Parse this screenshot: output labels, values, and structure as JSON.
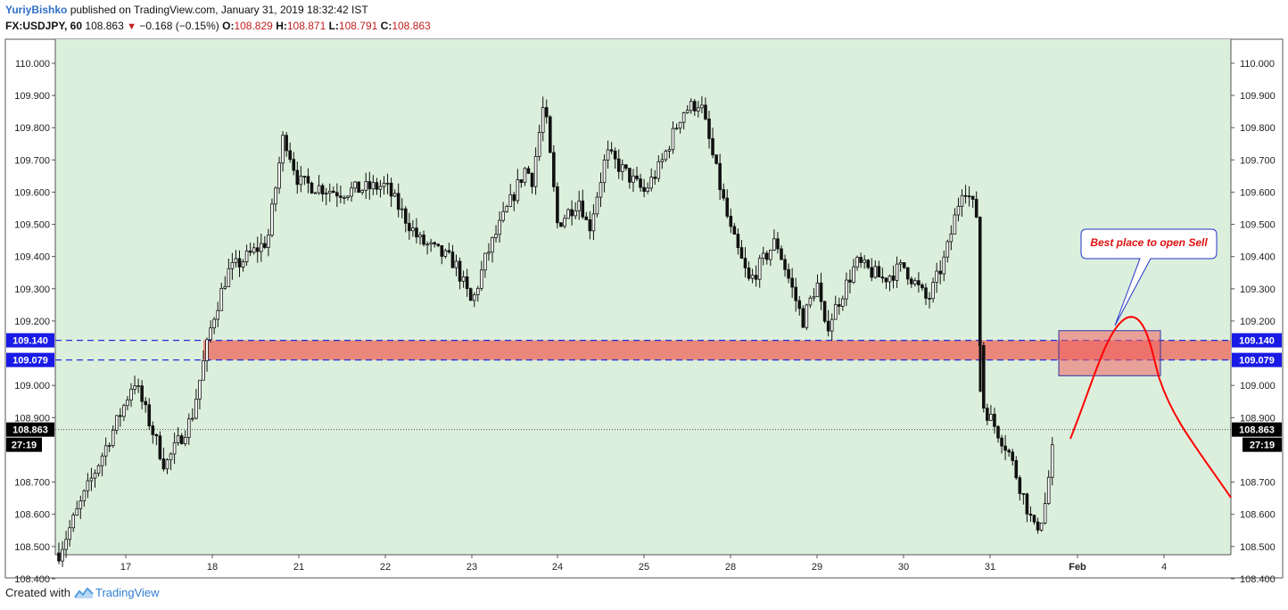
{
  "header": {
    "author": "YuriyBishko",
    "published": "published on TradingView.com, January 31, 2019 18:32:42 IST",
    "symbol": "FX:USDJPY, 60",
    "price": "108.863",
    "change": "−0.168 (−0.15%)",
    "o_label": "O:",
    "o_value": "108.829",
    "h_label": "H:",
    "h_value": "108.871",
    "l_label": "L:",
    "l_value": "108.791",
    "c_label": "C:",
    "c_value": "108.863"
  },
  "footer": {
    "created_with": "Created with",
    "brand": "TradingView"
  },
  "colors": {
    "plot_bg": "#dcefdc",
    "candle": "#111111",
    "zone_fill": "#e8877a",
    "line_blue": "#1f2fe0",
    "badge_blue": "#1a1ae6",
    "badge_black": "#000000",
    "sell_box": "#f06060",
    "projection": "#ff0000"
  },
  "chart_data": {
    "type": "candlestick",
    "x_tick_labels": [
      "17",
      "18",
      "21",
      "22",
      "23",
      "24",
      "25",
      "28",
      "29",
      "30",
      "31",
      "Feb",
      "4"
    ],
    "y_tick_labels": [
      "110.000",
      "109.900",
      "109.800",
      "109.700",
      "109.600",
      "109.500",
      "109.400",
      "109.300",
      "109.200",
      "109.000",
      "108.900",
      "108.700",
      "108.600",
      "108.500",
      "108.400"
    ],
    "ylim": [
      108.35,
      110.08
    ],
    "grid": false,
    "levels": [
      {
        "value": 109.14,
        "label": "109.140"
      },
      {
        "value": 109.079,
        "label": "109.079"
      }
    ],
    "zone": {
      "low": 109.079,
      "high": 109.14
    },
    "last_price": {
      "value": 108.863,
      "label": "108.863",
      "countdown": "27:19"
    },
    "annotation": "Best place to open Sell",
    "anchors": [
      {
        "label": "start",
        "price": 108.48
      },
      {
        "label": "17",
        "price": 108.95
      },
      {
        "label": "17b",
        "price": 109.02
      },
      {
        "label": "17c",
        "price": 108.75
      },
      {
        "label": "18pre",
        "price": 108.9
      },
      {
        "label": "18",
        "price": 109.2
      },
      {
        "label": "18b",
        "price": 109.35
      },
      {
        "label": "21pre",
        "price": 109.45
      },
      {
        "label": "21",
        "price": 109.78
      },
      {
        "label": "21b",
        "price": 109.63
      },
      {
        "label": "21c",
        "price": 109.6
      },
      {
        "label": "22",
        "price": 109.62
      },
      {
        "label": "22b",
        "price": 109.45
      },
      {
        "label": "22c",
        "price": 109.38
      },
      {
        "label": "22low",
        "price": 109.25
      },
      {
        "label": "23",
        "price": 109.4
      },
      {
        "label": "23b",
        "price": 109.68
      },
      {
        "label": "23c",
        "price": 109.63
      },
      {
        "label": "23top",
        "price": 109.88
      },
      {
        "label": "24",
        "price": 109.5
      },
      {
        "label": "24b",
        "price": 109.58
      },
      {
        "label": "24c",
        "price": 109.48
      },
      {
        "label": "24d",
        "price": 109.72
      },
      {
        "label": "25",
        "price": 109.6
      },
      {
        "label": "25b",
        "price": 109.68
      },
      {
        "label": "25c",
        "price": 109.85
      },
      {
        "label": "25top",
        "price": 109.88
      },
      {
        "label": "25d",
        "price": 109.7
      },
      {
        "label": "28",
        "price": 109.48
      },
      {
        "label": "28b",
        "price": 109.32
      },
      {
        "label": "28c",
        "price": 109.45
      },
      {
        "label": "29pre",
        "price": 109.2
      },
      {
        "label": "29",
        "price": 109.32
      },
      {
        "label": "29b",
        "price": 109.17
      },
      {
        "label": "29c",
        "price": 109.38
      },
      {
        "label": "30",
        "price": 109.33
      },
      {
        "label": "30b",
        "price": 109.37
      },
      {
        "label": "30c",
        "price": 109.26
      },
      {
        "label": "30d",
        "price": 109.4
      },
      {
        "label": "30top",
        "price": 109.63
      },
      {
        "label": "30e",
        "price": 109.52
      },
      {
        "label": "31",
        "price": 108.95
      },
      {
        "label": "31b",
        "price": 108.8
      },
      {
        "label": "31c",
        "price": 108.55
      },
      {
        "label": "31d",
        "price": 108.6
      },
      {
        "label": "end",
        "price": 108.86
      }
    ]
  }
}
